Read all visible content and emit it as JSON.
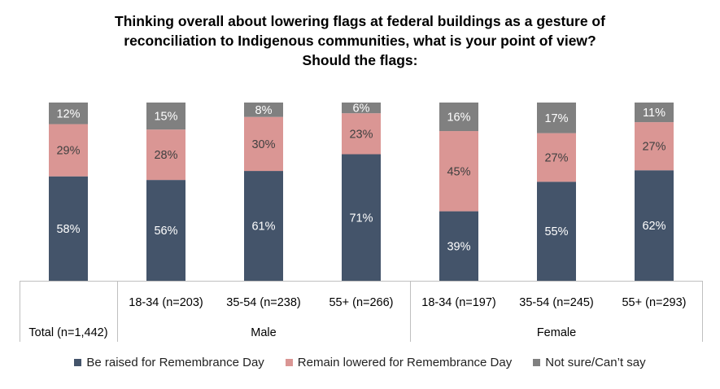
{
  "chart_data": {
    "type": "bar",
    "stacked": true,
    "title_lines": [
      "Thinking overall about lowering flags at federal buildings as a gesture of",
      "reconciliation to Indigenous communities, what is your point of view?",
      "Should the flags:"
    ],
    "categories": [
      "Total (n=1,442)",
      "18-34 (n=203)",
      "35-54 (n=238)",
      "55+ (n=266)",
      "18-34 (n=197)",
      "35-54 (n=245)",
      "55+ (n=293)"
    ],
    "groups": [
      {
        "label": "Male",
        "categories": [
          1,
          2,
          3
        ]
      },
      {
        "label": "Female",
        "categories": [
          4,
          5,
          6
        ]
      }
    ],
    "series": [
      {
        "name": "Be raised for Remembrance Day",
        "color": "#44546a",
        "values": [
          58,
          56,
          61,
          71,
          39,
          55,
          62
        ]
      },
      {
        "name": "Remain lowered for Remembrance Day",
        "color": "#da9694",
        "values": [
          29,
          28,
          30,
          23,
          45,
          27,
          27
        ]
      },
      {
        "name": "Not sure/Can’t say",
        "color": "#808080",
        "values": [
          12,
          15,
          8,
          6,
          16,
          17,
          11
        ]
      }
    ],
    "value_suffix": "%",
    "ylim": [
      0,
      100
    ],
    "legend_position": "bottom"
  }
}
